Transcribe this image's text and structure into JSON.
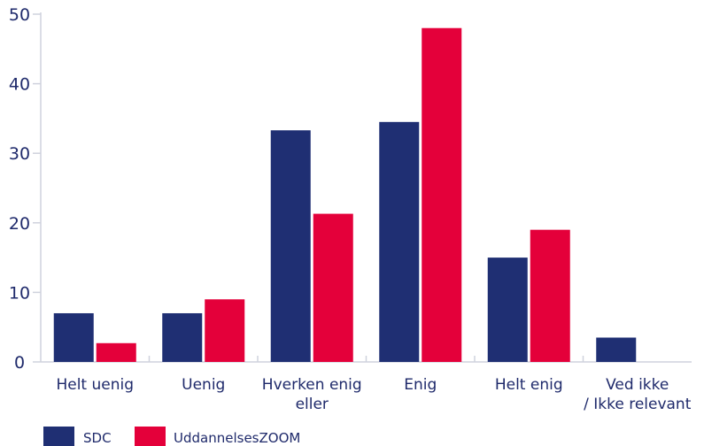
{
  "chart_data": {
    "type": "bar",
    "categories": [
      [
        "Helt uenig"
      ],
      [
        "Uenig"
      ],
      [
        "Hverken enig",
        "eller"
      ],
      [
        "Enig"
      ],
      [
        "Helt enig"
      ],
      [
        "Ved ikke",
        "/ Ikke relevant"
      ]
    ],
    "series": [
      {
        "name": "SDC",
        "color": "#1f2f73",
        "values": [
          7,
          7,
          33.3,
          34.5,
          15,
          3.5
        ]
      },
      {
        "name": "UddannelsesZOOM",
        "color": "#e4003a",
        "values": [
          2.7,
          9,
          21.3,
          48,
          19,
          0
        ]
      }
    ],
    "yticks": [
      0,
      10,
      20,
      30,
      40,
      50
    ],
    "ylim": [
      0,
      50
    ],
    "grid": false,
    "legend_position": "bottom-left"
  }
}
